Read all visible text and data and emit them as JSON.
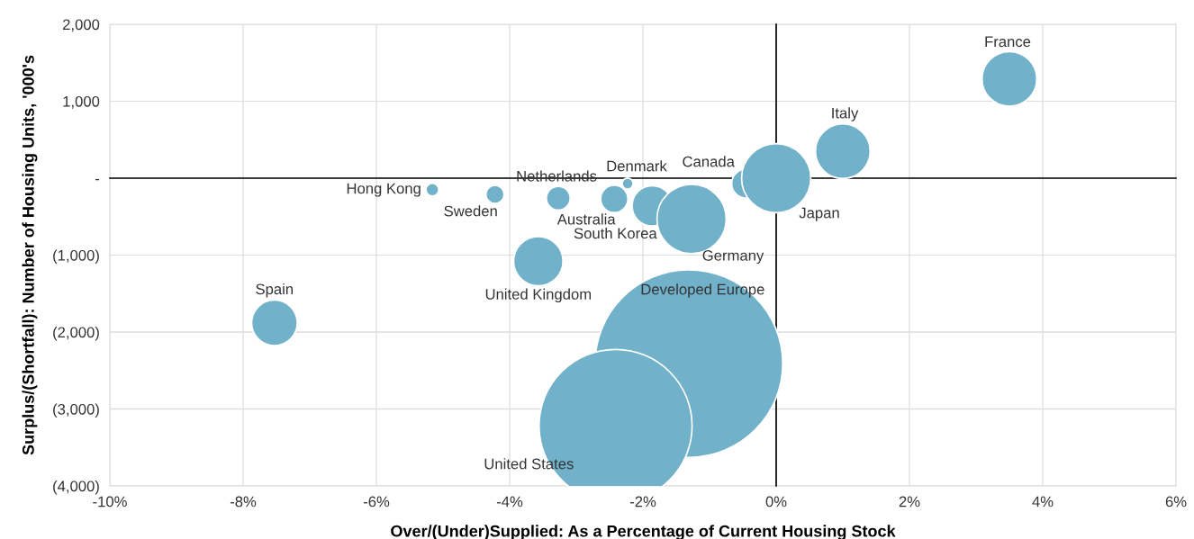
{
  "chart_data": {
    "type": "bubble",
    "xlabel": "Over/(Under)Supplied: As a Percentage of Current Housing Stock",
    "ylabel": "Surplus/(Shortfall): Number of Housing Units, '000's",
    "x": [
      3.5,
      1.0,
      -0.45,
      0.0,
      -2.23,
      -3.27,
      -5.16,
      -4.22,
      -2.43,
      -1.86,
      -1.27,
      -3.57,
      -7.53,
      -1.31,
      -2.41
    ],
    "values": [
      1290,
      350,
      -70,
      0,
      -70,
      -260,
      -150,
      -210,
      -270,
      -360,
      -530,
      -1080,
      -1880,
      -2410,
      -3220
    ],
    "sizes": [
      0.085,
      0.085,
      0.024,
      0.136,
      0.0034,
      0.016,
      0.0046,
      0.0094,
      0.021,
      0.046,
      0.136,
      0.069,
      0.059,
      1,
      0.665
    ],
    "color": "#71b1ca",
    "annotations": [
      {
        "text": "France",
        "x": 3.5,
        "y": 1290
      },
      {
        "text": "Italy",
        "x": 1.0,
        "y": 350
      },
      {
        "text": "Canada",
        "x": -0.45,
        "y": -70
      },
      {
        "text": "Japan",
        "x": 0.0,
        "y": 0
      },
      {
        "text": "Denmark",
        "x": -2.23,
        "y": -70
      },
      {
        "text": "Netherlands",
        "x": -3.27,
        "y": -260
      },
      {
        "text": "Hong Kong",
        "x": -5.16,
        "y": -150
      },
      {
        "text": "Sweden",
        "x": -4.22,
        "y": -210
      },
      {
        "text": "Australia",
        "x": -2.43,
        "y": -270
      },
      {
        "text": "South Korea",
        "x": -1.86,
        "y": -360
      },
      {
        "text": "Germany",
        "x": -1.27,
        "y": -530
      },
      {
        "text": "United Kingdom",
        "x": -3.57,
        "y": -1080
      },
      {
        "text": "Spain",
        "x": -7.53,
        "y": -1880
      },
      "Developed Europe",
      "United States"
    ],
    "xlim": [
      -10,
      6
    ],
    "xticks": [
      {
        "value": -10,
        "label": "-10%"
      },
      {
        "value": -8,
        "label": "-8%"
      },
      {
        "value": -6,
        "label": "-6%"
      },
      {
        "value": -4,
        "label": "-4%"
      },
      {
        "value": -2,
        "label": "-2%"
      },
      {
        "value": 0,
        "label": "0%"
      },
      {
        "value": 2,
        "label": "2%"
      },
      {
        "value": 4,
        "label": "4%"
      },
      {
        "value": 6,
        "label": "6%"
      }
    ],
    "ylim": [
      -4000,
      2000
    ],
    "yticks": [
      {
        "value": 2000,
        "label": "2,000"
      },
      {
        "value": 1000,
        "label": "1,000"
      },
      {
        "value": 0,
        "label": "-"
      },
      {
        "value": -1000,
        "label": "(1,000)"
      },
      {
        "value": -2000,
        "label": "(2,000)"
      },
      {
        "value": -3000,
        "label": "(3,000)"
      },
      {
        "value": -4000,
        "label": "(4,000)"
      }
    ],
    "grid": true
  }
}
